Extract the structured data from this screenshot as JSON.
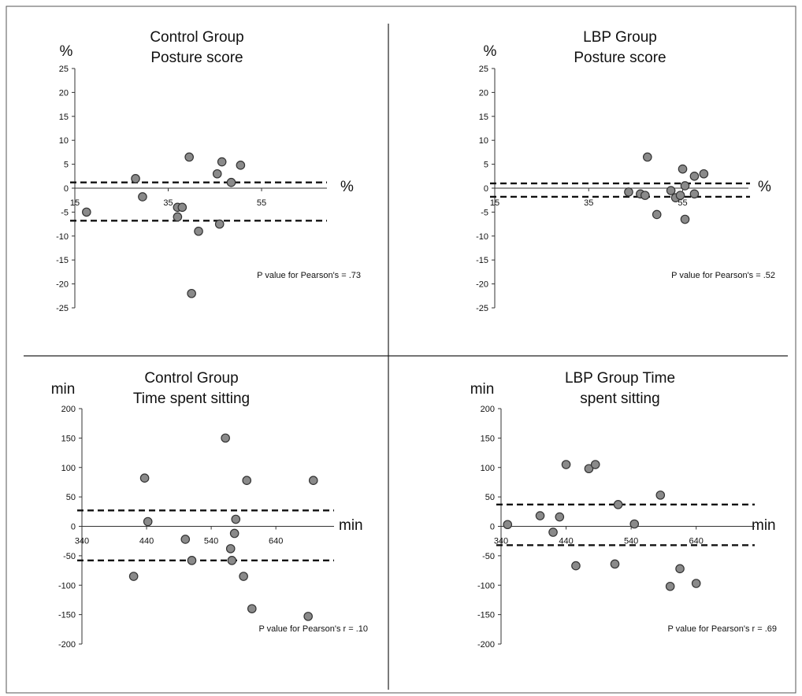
{
  "chart_data": [
    {
      "type": "scatter",
      "title": [
        "Control Group",
        "Posture score"
      ],
      "ylabel": "%",
      "xlabel": "%",
      "annotation": "P value for Pearson's = .73",
      "xticks": [
        15,
        35,
        55
      ],
      "yticks": [
        25,
        20,
        15,
        10,
        5,
        0,
        -5,
        -10,
        -15,
        -20,
        -25
      ],
      "xlim": [
        15,
        69
      ],
      "ylim": [
        -25,
        25
      ],
      "limit_lines": [
        1.2,
        -6.8
      ],
      "grid": false,
      "points": [
        {
          "x": 17.5,
          "y": -5
        },
        {
          "x": 28,
          "y": 2
        },
        {
          "x": 29.5,
          "y": -1.8
        },
        {
          "x": 39.5,
          "y": 6.5
        },
        {
          "x": 37,
          "y": -4
        },
        {
          "x": 38,
          "y": -4
        },
        {
          "x": 37,
          "y": -6
        },
        {
          "x": 41.5,
          "y": -9
        },
        {
          "x": 40,
          "y": -22
        },
        {
          "x": 45.5,
          "y": 3
        },
        {
          "x": 46.5,
          "y": 5.5
        },
        {
          "x": 46,
          "y": -7.5
        },
        {
          "x": 48.5,
          "y": 1.2
        },
        {
          "x": 50.5,
          "y": 4.8
        }
      ]
    },
    {
      "type": "scatter",
      "title": [
        "LBP Group",
        "Posture score"
      ],
      "ylabel": "%",
      "xlabel": "%",
      "annotation": "P value for Pearson's = .52",
      "xticks": [
        15,
        35,
        55
      ],
      "yticks": [
        25,
        20,
        15,
        10,
        5,
        0,
        -5,
        -10,
        -15,
        -20,
        -25
      ],
      "xlim": [
        15,
        69
      ],
      "ylim": [
        -25,
        25
      ],
      "limit_lines": [
        1.0,
        -1.8
      ],
      "grid": false,
      "points": [
        {
          "x": 43.5,
          "y": -0.8
        },
        {
          "x": 46,
          "y": -1.2
        },
        {
          "x": 47,
          "y": -1.5
        },
        {
          "x": 47.5,
          "y": 6.5
        },
        {
          "x": 49.5,
          "y": -5.5
        },
        {
          "x": 52.5,
          "y": -0.5
        },
        {
          "x": 53.5,
          "y": -2
        },
        {
          "x": 54.5,
          "y": -1.5
        },
        {
          "x": 55,
          "y": 4
        },
        {
          "x": 55.5,
          "y": 0.5
        },
        {
          "x": 55.5,
          "y": -6.5
        },
        {
          "x": 57.5,
          "y": -1.2
        },
        {
          "x": 57.5,
          "y": 2.5
        },
        {
          "x": 59.5,
          "y": 3
        }
      ]
    },
    {
      "type": "scatter",
      "title": [
        "Control Group",
        "Time spent sitting"
      ],
      "ylabel": "min",
      "xlabel": "min",
      "annotation": "P value for Pearson's r = .10",
      "xticks": [
        340,
        440,
        540,
        640
      ],
      "yticks": [
        200,
        150,
        100,
        50,
        0,
        -50,
        -100,
        -150,
        -200
      ],
      "xlim": [
        340,
        730
      ],
      "ylim": [
        -200,
        200
      ],
      "limit_lines": [
        27,
        -58
      ],
      "grid": false,
      "points": [
        {
          "x": 420,
          "y": -85
        },
        {
          "x": 437,
          "y": 82
        },
        {
          "x": 442,
          "y": 8
        },
        {
          "x": 500,
          "y": -22
        },
        {
          "x": 510,
          "y": -58
        },
        {
          "x": 562,
          "y": 150
        },
        {
          "x": 570,
          "y": -38
        },
        {
          "x": 572,
          "y": -58
        },
        {
          "x": 576,
          "y": -12
        },
        {
          "x": 578,
          "y": 12
        },
        {
          "x": 590,
          "y": -85
        },
        {
          "x": 595,
          "y": 78
        },
        {
          "x": 603,
          "y": -140
        },
        {
          "x": 690,
          "y": -153
        },
        {
          "x": 698,
          "y": 78
        }
      ]
    },
    {
      "type": "scatter",
      "title": [
        "LBP Group Time",
        "spent sitting"
      ],
      "ylabel": "min",
      "xlabel": "min",
      "annotation": "P value for Pearson's r = .69",
      "xticks": [
        340,
        440,
        540,
        640
      ],
      "yticks": [
        200,
        150,
        100,
        50,
        0,
        -50,
        -100,
        -150,
        -200
      ],
      "xlim": [
        340,
        730
      ],
      "ylim": [
        -200,
        200
      ],
      "limit_lines": [
        37,
        -32
      ],
      "grid": false,
      "points": [
        {
          "x": 350,
          "y": 3
        },
        {
          "x": 400,
          "y": 18
        },
        {
          "x": 420,
          "y": -10
        },
        {
          "x": 430,
          "y": 16
        },
        {
          "x": 440,
          "y": 105
        },
        {
          "x": 455,
          "y": -67
        },
        {
          "x": 475,
          "y": 98
        },
        {
          "x": 485,
          "y": 105
        },
        {
          "x": 515,
          "y": -64
        },
        {
          "x": 520,
          "y": 37
        },
        {
          "x": 545,
          "y": 4
        },
        {
          "x": 585,
          "y": 53
        },
        {
          "x": 600,
          "y": -102
        },
        {
          "x": 615,
          "y": -72
        },
        {
          "x": 640,
          "y": -97
        }
      ]
    }
  ]
}
